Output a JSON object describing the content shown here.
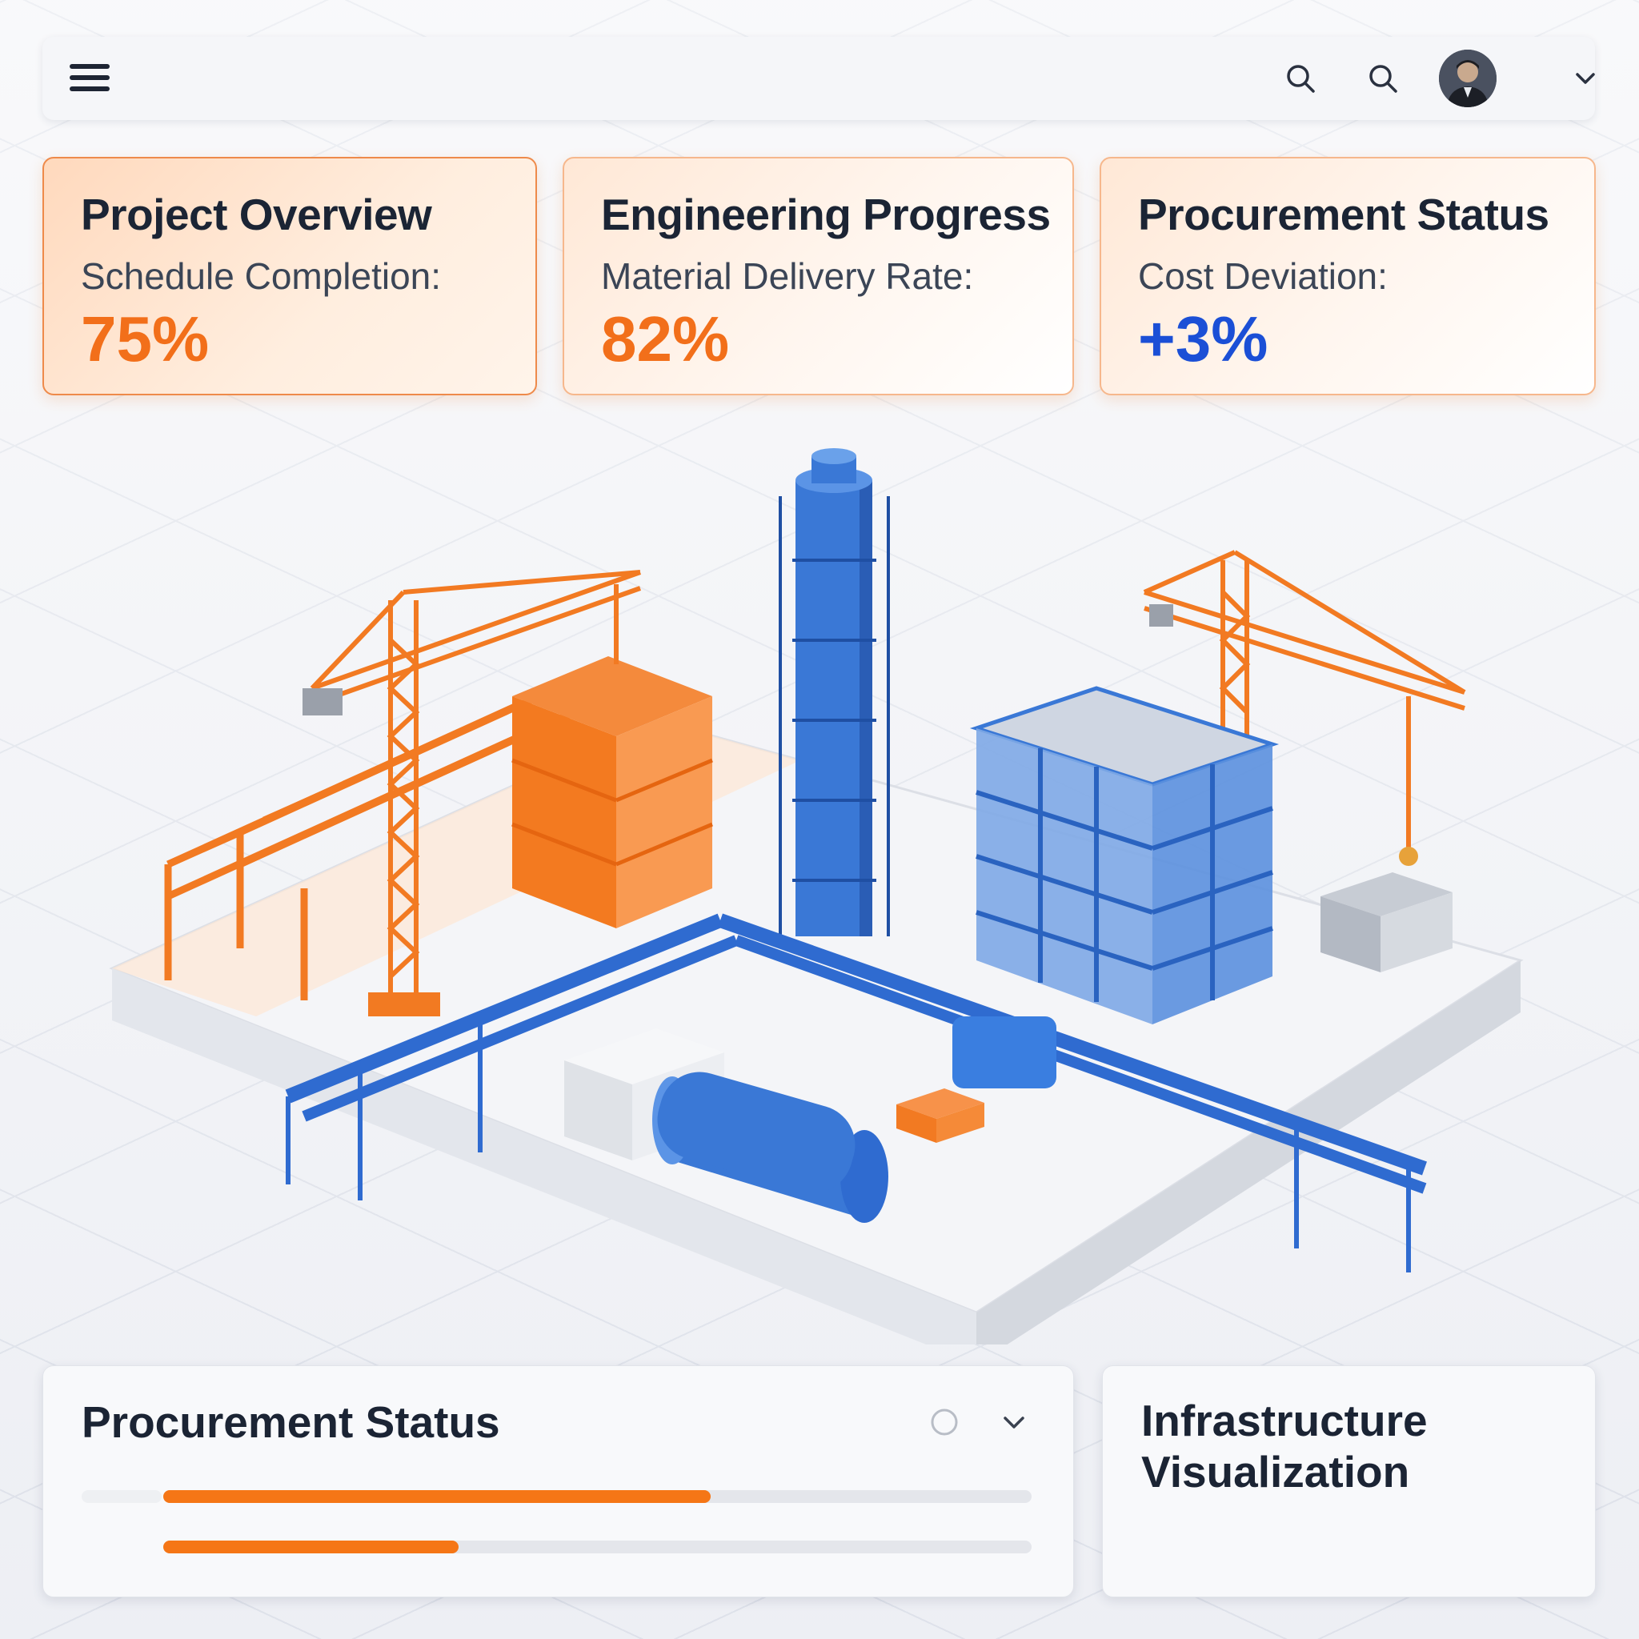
{
  "topbar": {
    "icons": [
      "menu-icon",
      "search-icon",
      "search-icon",
      "avatar",
      "chevron-down-icon"
    ]
  },
  "cards": [
    {
      "title": "Project Overview",
      "label": "Schedule Completion:",
      "value": "75%",
      "color": "#f26f1a"
    },
    {
      "title": "Engineering Progress",
      "label": "Material Delivery Rate:",
      "value": "82%",
      "color": "#f26f1a"
    },
    {
      "title": "Procurement Status",
      "label": "Cost Deviation:",
      "value": "+3%",
      "color": "#1b4fd6"
    }
  ],
  "procurement_panel": {
    "title": "Procurement Status",
    "progress": [
      0.63,
      0.34
    ],
    "accent": "#f57616"
  },
  "infra_panel": {
    "title": "Infrastructure Visualization"
  },
  "colors": {
    "orange": "#f57616",
    "blue": "#3a78d6",
    "navy": "#1b2434"
  }
}
